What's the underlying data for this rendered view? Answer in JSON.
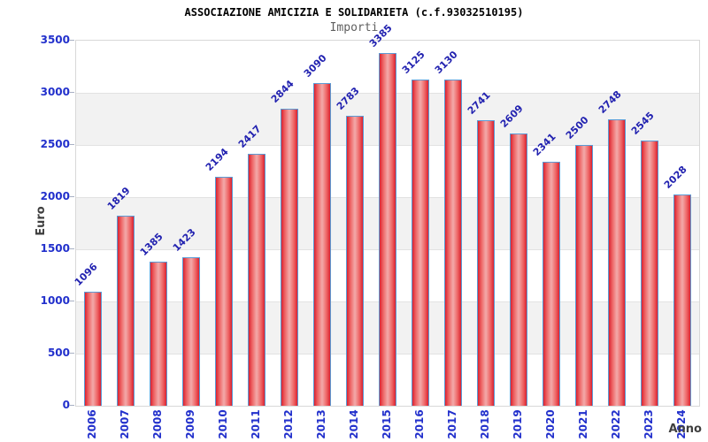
{
  "title": "ASSOCIAZIONE AMICIZIA E SOLIDARIETA (c.f.93032510195)",
  "subtitle": "Importi",
  "chart_data": {
    "type": "bar",
    "title": "ASSOCIAZIONE AMICIZIA E SOLIDARIETA (c.f.93032510195)",
    "subtitle": "Importi",
    "xlabel": "Anno",
    "ylabel": "Euro",
    "categories": [
      "2006",
      "2007",
      "2008",
      "2009",
      "2010",
      "2011",
      "2012",
      "2013",
      "2014",
      "2015",
      "2016",
      "2017",
      "2018",
      "2019",
      "2020",
      "2021",
      "2022",
      "2023",
      "2024"
    ],
    "values": [
      1096,
      1819,
      1385,
      1423,
      2194,
      2417,
      2844,
      3090,
      2783,
      3385,
      3125,
      3130,
      2741,
      2609,
      2341,
      2500,
      2748,
      2545,
      2028
    ],
    "ylim": [
      0,
      3500
    ],
    "yticks": [
      0,
      500,
      1000,
      1500,
      2000,
      2500,
      3000,
      3500
    ],
    "grid": "alternating-horizontal-bands",
    "legend": "none",
    "colors": {
      "bar_edge": "#da2230",
      "bar_center": "#f3aaaa",
      "bar_border": "#5b9bd5",
      "band_gray": "#f2f2f2",
      "axis_text_blue": "#2230cc",
      "value_label_navy": "#2222b0",
      "plot_border": "#d8d8d8",
      "axis_title_gray": "#3f3f3f"
    }
  }
}
